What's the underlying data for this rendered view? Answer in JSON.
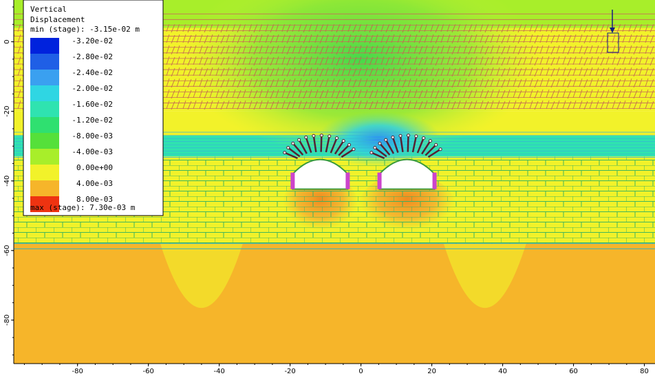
{
  "chart_data": {
    "type": "contour",
    "title": "Vertical Displacement",
    "legend": {
      "title_line1": "Vertical",
      "title_line2": "Displacement",
      "min_label": "min (stage): -3.15e-02 m",
      "max_label": "max (stage): 7.30e-03 m",
      "min_value": -0.0315,
      "max_value": 0.0073,
      "unit": "m",
      "placement": "top-left",
      "entries": [
        {
          "label": "-3.20e-02",
          "value": -0.032,
          "color": "#0022dd"
        },
        {
          "label": "-2.80e-02",
          "value": -0.028,
          "color": "#1f5fe6"
        },
        {
          "label": "-2.40e-02",
          "value": -0.024,
          "color": "#3aa0f0"
        },
        {
          "label": "-2.00e-02",
          "value": -0.02,
          "color": "#2fd6e3"
        },
        {
          "label": "-1.60e-02",
          "value": -0.016,
          "color": "#2fe3b0"
        },
        {
          "label": "-1.20e-02",
          "value": -0.012,
          "color": "#2fe070"
        },
        {
          "label": "-8.00e-03",
          "value": -0.008,
          "color": "#55e03a"
        },
        {
          "label": "-4.00e-03",
          "value": -0.004,
          "color": "#a8ee2a"
        },
        {
          "label": "0.00e+00",
          "value": 0.0,
          "color": "#f2f22a"
        },
        {
          "label": "4.00e-03",
          "value": 0.004,
          "color": "#f6b52a"
        },
        {
          "label": "8.00e-03",
          "value": 0.008,
          "color": "#ee3311"
        }
      ]
    },
    "x_axis": {
      "ticks": [
        -80,
        -60,
        -40,
        -20,
        0,
        20,
        40,
        60,
        80
      ],
      "tick_labels": [
        "-80",
        "-60",
        "-40",
        "-20",
        "0",
        "20",
        "40",
        "60",
        "80"
      ],
      "range": [
        -98,
        83
      ]
    },
    "y_axis": {
      "ticks": [
        0,
        -20,
        -40,
        -60,
        -80
      ],
      "tick_labels": [
        "0",
        "-20",
        "-40",
        "-60",
        "-80"
      ],
      "range": [
        -92.5,
        12
      ]
    },
    "tunnels": [
      {
        "name": "left tunnel",
        "center_x": -11.5,
        "center_y": -38
      },
      {
        "name": "right tunnel",
        "center_x": 13,
        "center_y": -38
      }
    ]
  }
}
